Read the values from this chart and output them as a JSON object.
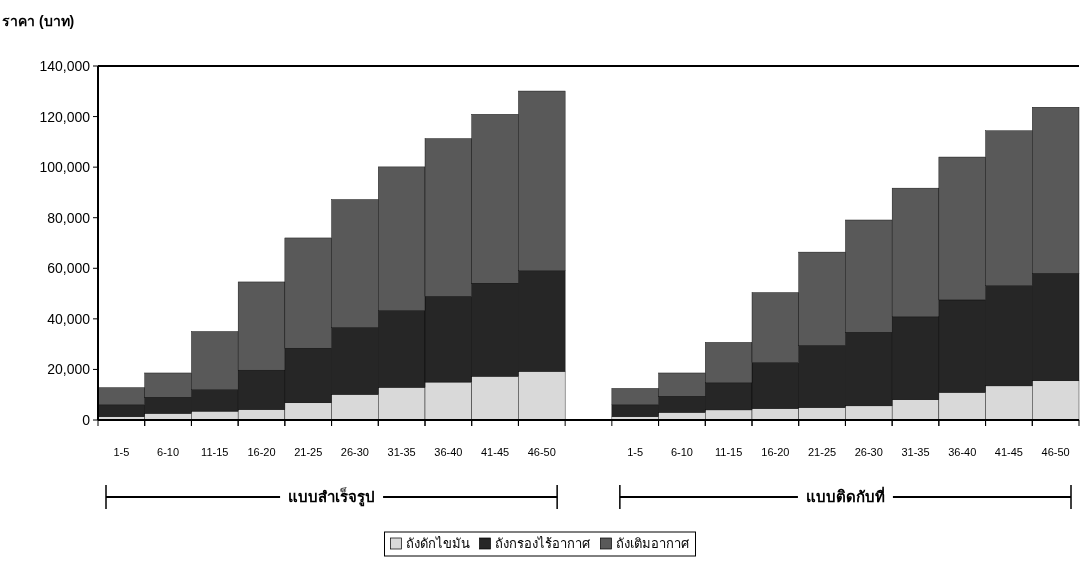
{
  "chart_data": {
    "type": "bar",
    "stacked": true,
    "ylabel": "ราคา (บาท)",
    "categories": [
      "1-5",
      "6-10",
      "11-15",
      "16-20",
      "21-25",
      "26-30",
      "31-35",
      "36-40",
      "41-45",
      "46-50",
      null,
      "1-5",
      "6-10",
      "11-15",
      "16-20",
      "21-25",
      "26-30",
      "31-35",
      "36-40",
      "41-45",
      "46-50"
    ],
    "series": [
      {
        "name": "ถังดักไขมัน",
        "color": "#d9d9d9",
        "values": [
          1300,
          2600,
          3500,
          4100,
          6800,
          10100,
          12900,
          15000,
          17300,
          19200,
          null,
          1300,
          3000,
          4000,
          4500,
          4900,
          5600,
          8000,
          10900,
          13500,
          15500
        ]
      },
      {
        "name": "ถังกรองไร้อากาศ",
        "color": "#262626",
        "values": [
          4700,
          6400,
          8500,
          15600,
          21600,
          26500,
          30400,
          33900,
          36800,
          39800,
          null,
          4700,
          6400,
          10700,
          18200,
          24600,
          29100,
          32800,
          36600,
          39600,
          42500
        ]
      },
      {
        "name": "ถังเติมอากาศ",
        "color": "#595959",
        "values": [
          6800,
          9600,
          23000,
          34900,
          43600,
          50600,
          56800,
          62400,
          66800,
          71100,
          null,
          6500,
          9200,
          16000,
          27700,
          36900,
          44400,
          50900,
          56500,
          61300,
          65700
        ]
      }
    ],
    "ylim": [
      0,
      140000
    ],
    "yticks": [
      0,
      {
        "value": 20000,
        "label": "20,000"
      },
      {
        "value": 40000,
        "label": "40,000"
      },
      {
        "value": 60000,
        "label": "60,000"
      },
      {
        "value": 80000,
        "label": "80,000"
      },
      {
        "value": 100000,
        "label": "100,000"
      },
      {
        "value": 120000,
        "label": "120,000"
      },
      {
        "value": 140000,
        "label": "140,000"
      }
    ],
    "annotations": [
      "แบบสำเร็จรูป",
      "แบบติดกับที่"
    ],
    "legend": "bottom"
  }
}
